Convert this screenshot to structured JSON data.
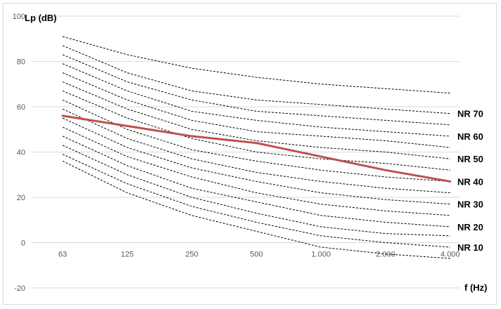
{
  "chart_data": {
    "type": "line",
    "title": "",
    "ylabel": "Lp (dB)",
    "xlabel": "f (Hz)",
    "ylim": [
      -20,
      100
    ],
    "yticks": [
      -20,
      0,
      20,
      40,
      60,
      80,
      100
    ],
    "categories": [
      "63",
      "125",
      "250",
      "500",
      "1.000",
      "2.000",
      "4.000"
    ],
    "grid": "horizontal",
    "colors": {
      "gridline": "#d9d9d9",
      "curve": "#000000",
      "measured": "#c0504d"
    },
    "nr_curves": [
      {
        "label": "",
        "values": [
          36,
          22,
          12,
          5,
          -2,
          -5,
          -7
        ]
      },
      {
        "label": "NR 10",
        "values": [
          39,
          26,
          16,
          9,
          3,
          0,
          -2
        ]
      },
      {
        "label": "",
        "values": [
          43,
          30,
          20,
          13,
          7,
          4,
          3
        ]
      },
      {
        "label": "NR 20",
        "values": [
          47,
          34,
          24,
          18,
          12,
          9,
          7
        ]
      },
      {
        "label": "",
        "values": [
          51,
          38,
          29,
          22,
          17,
          14,
          12
        ]
      },
      {
        "label": "NR 30",
        "values": [
          55,
          42,
          33,
          27,
          22,
          19,
          17
        ]
      },
      {
        "label": "",
        "values": [
          59,
          46,
          37,
          31,
          27,
          24,
          22
        ]
      },
      {
        "label": "NR 40",
        "values": [
          63,
          50,
          41,
          36,
          32,
          29,
          27
        ]
      },
      {
        "label": "",
        "values": [
          67,
          55,
          46,
          40,
          37,
          35,
          32
        ]
      },
      {
        "label": "NR 50",
        "values": [
          71,
          59,
          50,
          45,
          42,
          40,
          37
        ]
      },
      {
        "label": "",
        "values": [
          75,
          63,
          54,
          49,
          47,
          45,
          42
        ]
      },
      {
        "label": "NR 60",
        "values": [
          79,
          67,
          58,
          54,
          51,
          49,
          47
        ]
      },
      {
        "label": "",
        "values": [
          83,
          71,
          63,
          58,
          56,
          54,
          52
        ]
      },
      {
        "label": "NR 70",
        "values": [
          87,
          75,
          67,
          63,
          61,
          59,
          57
        ]
      },
      {
        "label": "",
        "values": [
          91,
          83,
          77,
          73,
          70,
          68,
          66
        ]
      }
    ],
    "measured": {
      "values": [
        56,
        51.5,
        47,
        44,
        38,
        32,
        27
      ]
    }
  }
}
